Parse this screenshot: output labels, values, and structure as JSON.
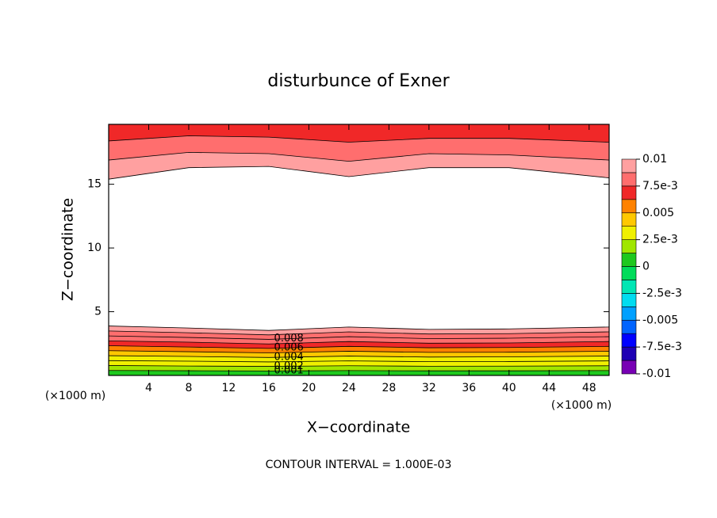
{
  "chart_data": {
    "type": "contour",
    "title": "disturbunce of Exner",
    "xlabel": "X−coordinate",
    "ylabel": "Z−coordinate",
    "xunit": "(×1000 m)",
    "contour_interval": {
      "value": 0.001,
      "label": "CONTOUR INTERVAL = 1.000E-03"
    },
    "xlim": [
      0,
      50
    ],
    "ylim": [
      0,
      19.7
    ],
    "xticks": [
      4,
      8,
      12,
      16,
      20,
      24,
      28,
      32,
      36,
      40,
      44,
      48
    ],
    "yticks": [
      5,
      10,
      15
    ],
    "x": [
      0,
      8,
      16,
      24,
      32,
      40,
      50
    ],
    "regions": [
      {
        "edge": "bottom",
        "contours": [
          {
            "level": 0.001,
            "z": [
              0.39,
              0.37,
              0.35,
              0.38,
              0.36,
              0.36,
              0.38
            ]
          },
          {
            "level": 0.002,
            "z": [
              0.78,
              0.74,
              0.71,
              0.76,
              0.72,
              0.73,
              0.76
            ]
          },
          {
            "level": 0.003,
            "z": [
              1.16,
              1.12,
              1.06,
              1.14,
              1.08,
              1.09,
              1.14
            ]
          },
          {
            "level": 0.004,
            "z": [
              1.55,
              1.49,
              1.41,
              1.52,
              1.44,
              1.46,
              1.52
            ]
          },
          {
            "level": 0.005,
            "z": [
              1.94,
              1.86,
              1.77,
              1.9,
              1.81,
              1.82,
              1.9
            ]
          },
          {
            "level": 0.006,
            "z": [
              2.33,
              2.23,
              2.12,
              2.28,
              2.17,
              2.19,
              2.28
            ]
          },
          {
            "level": 0.007,
            "z": [
              2.71,
              2.61,
              2.47,
              2.66,
              2.53,
              2.55,
              2.66
            ]
          },
          {
            "level": 0.008,
            "z": [
              3.1,
              2.98,
              2.83,
              3.04,
              2.89,
              2.92,
              3.04
            ]
          },
          {
            "level": 0.009,
            "z": [
              3.49,
              3.35,
              3.18,
              3.42,
              3.25,
              3.28,
              3.42
            ]
          },
          {
            "level": 0.01,
            "z": [
              3.88,
              3.72,
              3.53,
              3.8,
              3.61,
              3.65,
              3.8
            ]
          }
        ]
      },
      {
        "edge": "top",
        "contours": [
          {
            "level": 0.008,
            "z": [
              18.4,
              18.8,
              18.7,
              18.3,
              18.6,
              18.6,
              18.3
            ]
          },
          {
            "level": 0.009,
            "z": [
              16.9,
              17.5,
              17.4,
              16.8,
              17.4,
              17.3,
              16.9
            ]
          },
          {
            "level": 0.01,
            "z": [
              15.4,
              16.3,
              16.4,
              15.6,
              16.3,
              16.3,
              15.5
            ]
          }
        ]
      }
    ],
    "contour_labels": [
      0.008,
      0.006,
      0.004,
      0.002,
      0.001
    ],
    "colorbar": {
      "range": [
        -0.01,
        0.01
      ],
      "colors": [
        "#7800b4",
        "#1e00b4",
        "#0000ff",
        "#0064ff",
        "#00a0ff",
        "#00dcf0",
        "#00e6b4",
        "#00dc5a",
        "#1ec81e",
        "#a0e600",
        "#f0f000",
        "#ffc800",
        "#ff8200",
        "#f02828",
        "#ff6e6e",
        "#ffa0a0"
      ],
      "ticks": [
        0.01,
        {
          "value": 0.0075,
          "label": "7.5e-3"
        },
        0.005,
        {
          "value": 0.0025,
          "label": "2.5e-3"
        },
        0,
        {
          "value": -0.0025,
          "label": "-2.5e-3"
        },
        -0.005,
        {
          "value": -0.0075,
          "label": "-7.5e-3"
        },
        -0.01
      ]
    }
  }
}
